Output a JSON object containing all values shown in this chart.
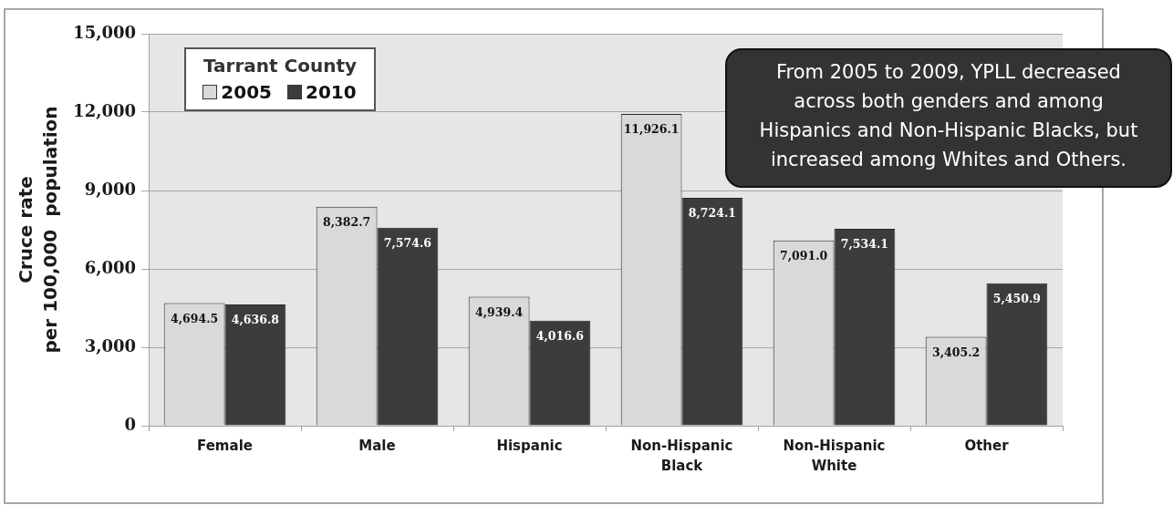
{
  "chart_data": {
    "type": "bar",
    "categories": [
      "Female",
      "Male",
      "Hispanic",
      "Non-Hispanic Black",
      "Non-Hispanic White",
      "Other"
    ],
    "series": [
      {
        "name": "2005",
        "color": "#d9d9d9",
        "values": [
          4694.5,
          8382.7,
          4939.4,
          11926.1,
          7091.0,
          3405.2
        ],
        "value_labels": [
          "4,694.5",
          "8,382.7",
          "4,939.4",
          "11,926.1",
          "7,091.0",
          "3,405.2"
        ]
      },
      {
        "name": "2010",
        "color": "#3c3c3c",
        "values": [
          4636.8,
          7574.6,
          4016.6,
          8724.1,
          7534.1,
          5450.9
        ],
        "value_labels": [
          "4,636.8",
          "7,574.6",
          "4,016.6",
          "8,724.1",
          "7,534.1",
          "5,450.9"
        ]
      }
    ],
    "ylabel": "Cruce rate\nper 100,000  population",
    "legend_title": "Tarrant County",
    "legend": "top left",
    "ylim": [
      0,
      15000
    ],
    "yticks": [
      {
        "value": 0,
        "label": "0"
      },
      {
        "value": 3000,
        "label": "3,000"
      },
      {
        "value": 6000,
        "label": "6,000"
      },
      {
        "value": 9000,
        "label": "9,000"
      },
      {
        "value": 12000,
        "label": "12,000"
      },
      {
        "value": 15000,
        "label": "15,000"
      }
    ],
    "grid": "y",
    "annotations": [
      "From 2005 to 2009, YPLL decreased\nacross both genders and among\nHispanics and Non-Hispanic Blacks, but\nincreased among Whites and Others."
    ]
  }
}
